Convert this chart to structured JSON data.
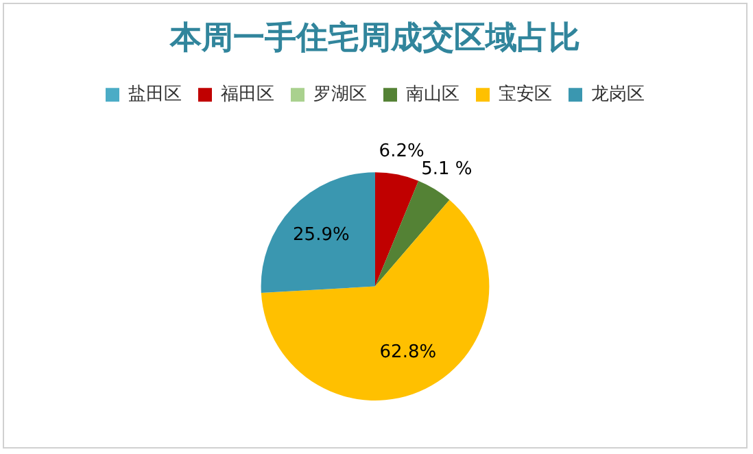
{
  "chart_data": {
    "type": "pie",
    "title": "本周一手住宅周成交区域占比",
    "categories": [
      "盐田区",
      "福田区",
      "罗湖区",
      "南山区",
      "宝安区",
      "龙岗区"
    ],
    "values": [
      0,
      6.2,
      0,
      5.1,
      62.8,
      25.9
    ],
    "colors": [
      "#4bacc6",
      "#c00000",
      "#a9d18e",
      "#548235",
      "#ffc000",
      "#3a97b0"
    ],
    "value_labels": [
      null,
      "6.2%",
      null,
      "5.1 %",
      "62.8%",
      "25.9%"
    ],
    "legend": "top"
  }
}
